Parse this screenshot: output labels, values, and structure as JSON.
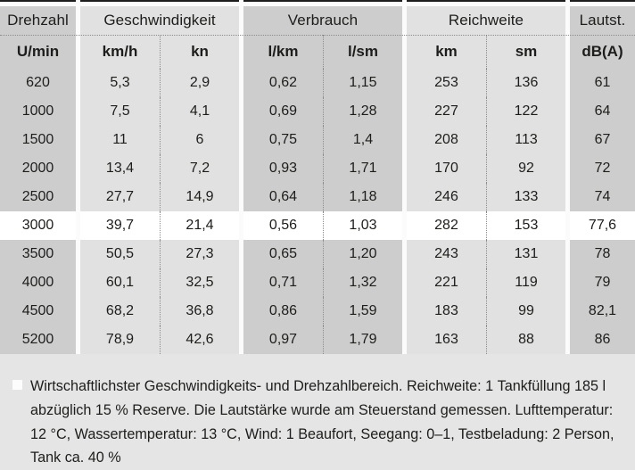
{
  "colors": {
    "page_background": "#e5e5e5",
    "column_dark": "#cdcdcd",
    "column_light": "#e1e1e1",
    "highlight_row": "#ffffff",
    "top_rule": "#1c1c1c",
    "dotted_line": "#8c8c8c",
    "text": "#1d1d1b"
  },
  "table": {
    "groups": [
      {
        "label": "Drehzahl",
        "tone": "dark",
        "columns": [
          {
            "unit": "U/min"
          }
        ]
      },
      {
        "label": "Geschwindigkeit",
        "tone": "light",
        "columns": [
          {
            "unit": "km/h"
          },
          {
            "unit": "kn"
          }
        ]
      },
      {
        "label": "Verbrauch",
        "tone": "dark",
        "columns": [
          {
            "unit": "l/km"
          },
          {
            "unit": "l/sm"
          }
        ]
      },
      {
        "label": "Reichweite",
        "tone": "light",
        "columns": [
          {
            "unit": "km"
          },
          {
            "unit": "sm"
          }
        ]
      },
      {
        "label": "Lautst.",
        "tone": "dark",
        "columns": [
          {
            "unit": "dB(A)"
          }
        ]
      }
    ],
    "rows": [
      {
        "highlight": false,
        "values": [
          "620",
          "5,3",
          "2,9",
          "0,62",
          "1,15",
          "253",
          "136",
          "61"
        ]
      },
      {
        "highlight": false,
        "values": [
          "1000",
          "7,5",
          "4,1",
          "0,69",
          "1,28",
          "227",
          "122",
          "64"
        ]
      },
      {
        "highlight": false,
        "values": [
          "1500",
          "11",
          "6",
          "0,75",
          "1,4",
          "208",
          "113",
          "67"
        ]
      },
      {
        "highlight": false,
        "values": [
          "2000",
          "13,4",
          "7,2",
          "0,93",
          "1,71",
          "170",
          "92",
          "72"
        ]
      },
      {
        "highlight": false,
        "values": [
          "2500",
          "27,7",
          "14,9",
          "0,64",
          "1,18",
          "246",
          "133",
          "74"
        ]
      },
      {
        "highlight": true,
        "values": [
          "3000",
          "39,7",
          "21,4",
          "0,56",
          "1,03",
          "282",
          "153",
          "77,6"
        ]
      },
      {
        "highlight": false,
        "values": [
          "3500",
          "50,5",
          "27,3",
          "0,65",
          "1,20",
          "243",
          "131",
          "78"
        ]
      },
      {
        "highlight": false,
        "values": [
          "4000",
          "60,1",
          "32,5",
          "0,71",
          "1,32",
          "221",
          "119",
          "79"
        ]
      },
      {
        "highlight": false,
        "values": [
          "4500",
          "68,2",
          "36,8",
          "0,86",
          "1,59",
          "183",
          "99",
          "82,1"
        ]
      },
      {
        "highlight": false,
        "values": [
          "5200",
          "78,9",
          "42,6",
          "0,97",
          "1,79",
          "163",
          "88",
          "86"
        ]
      }
    ]
  },
  "chart_data": {
    "type": "table",
    "title": "",
    "column_groups": [
      "Drehzahl",
      "Geschwindigkeit",
      "Verbrauch",
      "Reichweite",
      "Lautst."
    ],
    "columns": [
      "U/min",
      "km/h",
      "kn",
      "l/km",
      "l/sm",
      "km",
      "sm",
      "dB(A)"
    ],
    "rows": [
      [
        620,
        5.3,
        2.9,
        0.62,
        1.15,
        253,
        136,
        61
      ],
      [
        1000,
        7.5,
        4.1,
        0.69,
        1.28,
        227,
        122,
        64
      ],
      [
        1500,
        11,
        6,
        0.75,
        1.4,
        208,
        113,
        67
      ],
      [
        2000,
        13.4,
        7.2,
        0.93,
        1.71,
        170,
        92,
        72
      ],
      [
        2500,
        27.7,
        14.9,
        0.64,
        1.18,
        246,
        133,
        74
      ],
      [
        3000,
        39.7,
        21.4,
        0.56,
        1.03,
        282,
        153,
        77.6
      ],
      [
        3500,
        50.5,
        27.3,
        0.65,
        1.2,
        243,
        131,
        78
      ],
      [
        4000,
        60.1,
        32.5,
        0.71,
        1.32,
        221,
        119,
        79
      ],
      [
        4500,
        68.2,
        36.8,
        0.86,
        1.59,
        183,
        99,
        82.1
      ],
      [
        5200,
        78.9,
        42.6,
        0.97,
        1.79,
        163,
        88,
        86
      ]
    ],
    "highlighted_row_index": 5
  },
  "footnote": {
    "text": "Wirtschaftlichster Geschwindigkeits- und Drehzahlbereich. Reichweite: 1 Tankfüllung 185 l abzüglich 15 % Reserve. Die Lautstärke wurde am Steuerstand gemessen. Lufttemperatur: 12 °C, Wassertemperatur: 13 °C, Wind: 1 Beaufort, Seegang: 0–1, Testbeladung: 2 Person, Tank ca. 40 %"
  }
}
